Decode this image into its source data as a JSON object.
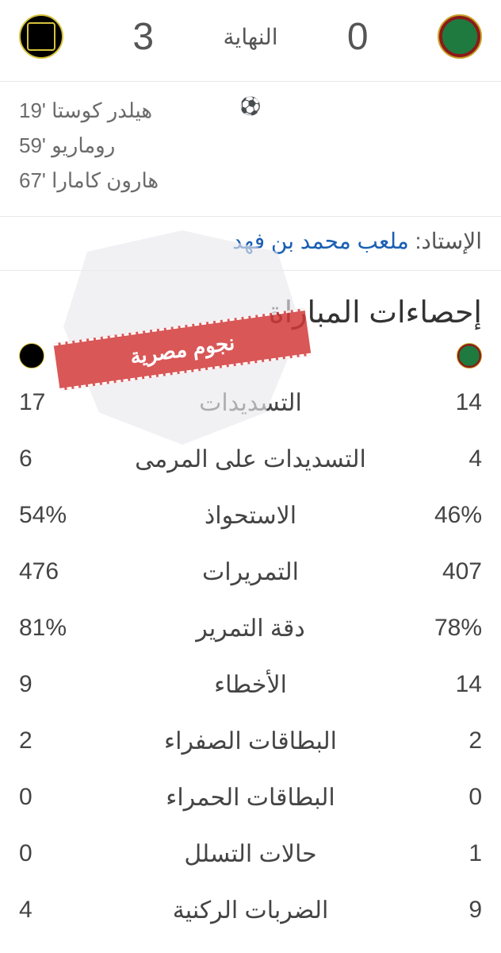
{
  "header": {
    "status": "النهاية",
    "team_right": {
      "score": "0",
      "logo": "ettifaq-logo"
    },
    "team_left": {
      "score": "3",
      "logo": "ittihad-logo"
    }
  },
  "goals": {
    "left": [
      "هيلدر كوستا '19",
      "روماريو '59",
      "هارون كامارا '67"
    ]
  },
  "stadium": {
    "label": "الإستاد:",
    "name": "ملعب محمد بن فهد"
  },
  "watermark": {
    "text": "نجوم مصرية"
  },
  "stats": {
    "title": "إحصاءات المباراة",
    "rows": [
      {
        "right": "14",
        "label": "التسديدات",
        "left": "17"
      },
      {
        "right": "4",
        "label": "التسديدات على المرمى",
        "left": "6"
      },
      {
        "right": "46%",
        "label": "الاستحواذ",
        "left": "54%"
      },
      {
        "right": "407",
        "label": "التمريرات",
        "left": "476"
      },
      {
        "right": "78%",
        "label": "دقة التمرير",
        "left": "81%"
      },
      {
        "right": "14",
        "label": "الأخطاء",
        "left": "9"
      },
      {
        "right": "2",
        "label": "البطاقات الصفراء",
        "left": "2"
      },
      {
        "right": "0",
        "label": "البطاقات الحمراء",
        "left": "0"
      },
      {
        "right": "1",
        "label": "حالات التسلل",
        "left": "0"
      },
      {
        "right": "9",
        "label": "الضربات الركنية",
        "left": "4"
      }
    ]
  }
}
